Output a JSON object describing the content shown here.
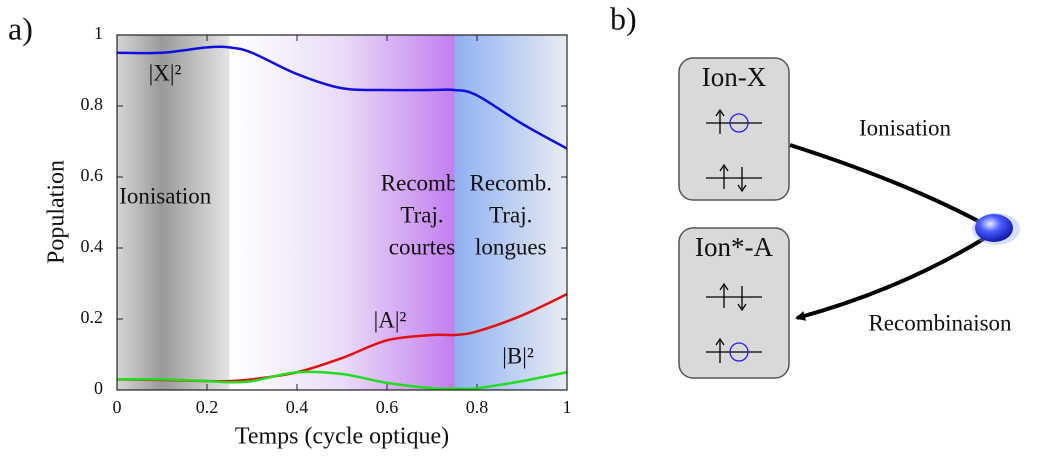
{
  "panel_labels": [
    "a)",
    "b)"
  ],
  "chart_data": {
    "type": "line",
    "xlabel": "Temps (cycle optique)",
    "ylabel": "Population",
    "x": [
      0,
      0.1,
      0.2,
      0.25,
      0.3,
      0.4,
      0.5,
      0.6,
      0.7,
      0.75,
      0.8,
      0.9,
      1
    ],
    "series": [
      {
        "name": "|X|²",
        "color": "#1010dd",
        "values": [
          0.95,
          0.95,
          0.965,
          0.965,
          0.95,
          0.89,
          0.85,
          0.845,
          0.845,
          0.845,
          0.83,
          0.75,
          0.68
        ]
      },
      {
        "name": "|A|²",
        "color": "#e01010",
        "values": [
          0.03,
          0.028,
          0.025,
          0.025,
          0.03,
          0.05,
          0.09,
          0.14,
          0.155,
          0.155,
          0.165,
          0.21,
          0.27
        ]
      },
      {
        "name": "|B|²",
        "color": "#20dd20",
        "values": [
          0.03,
          0.03,
          0.025,
          0.022,
          0.025,
          0.05,
          0.045,
          0.02,
          0.005,
          0.004,
          0.005,
          0.025,
          0.05
        ]
      }
    ],
    "regions": [
      {
        "from": 0,
        "to": 0.25,
        "label": [
          "Ionisation"
        ]
      },
      {
        "from": 0.25,
        "to": 0.75,
        "label": [
          "Recomb.",
          "Traj.",
          "courtes"
        ]
      },
      {
        "from": 0.75,
        "to": 1,
        "label": [
          "Recomb.",
          "Traj.",
          "longues"
        ]
      }
    ],
    "xlim": [
      0,
      1
    ],
    "ylim": [
      0,
      1
    ],
    "xticks": [
      0,
      0.2,
      0.4,
      0.6,
      0.8,
      1
    ],
    "yticks": [
      0,
      0.2,
      0.4,
      0.6,
      0.8,
      1
    ]
  },
  "diagram": {
    "boxes": [
      "Ion-X",
      "Ion*-A"
    ],
    "arrows": [
      "Ionisation",
      "Recombinaison"
    ]
  }
}
